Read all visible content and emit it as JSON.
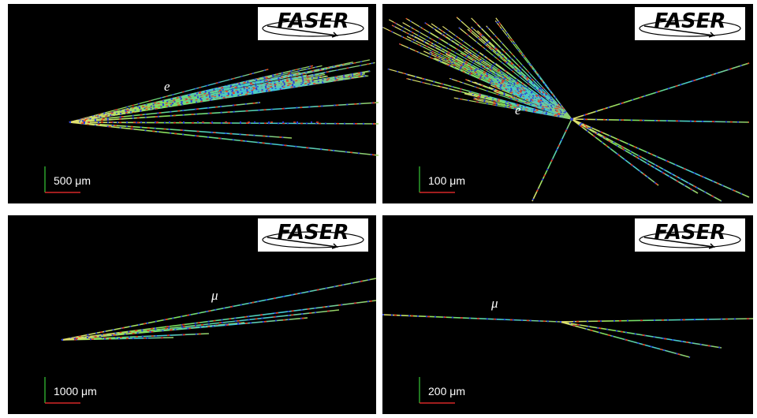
{
  "panels": [
    {
      "logo": "FASER",
      "particle": "e",
      "scale": "500 μm"
    },
    {
      "logo": "FASER",
      "particle": "e",
      "scale": "100 μm"
    },
    {
      "logo": "FASER",
      "particle": "μ",
      "scale": "1000 μm"
    },
    {
      "logo": "FASER",
      "particle": "μ",
      "scale": "200 μm"
    }
  ]
}
